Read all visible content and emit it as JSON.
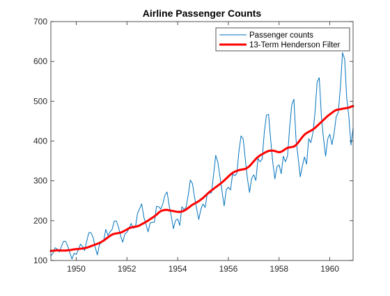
{
  "chart_data": {
    "type": "line",
    "title": "Airline Passenger Counts",
    "xlabel": "",
    "ylabel": "",
    "xlim": [
      1949.0,
      1960.917
    ],
    "ylim": [
      100,
      700
    ],
    "x_start": 1949.0,
    "x_step": 0.08333333,
    "x_ticks": [
      1950,
      1952,
      1954,
      1956,
      1958,
      1960
    ],
    "y_ticks": [
      100,
      200,
      300,
      400,
      500,
      600,
      700
    ],
    "grid": false,
    "legend_position": "top-right",
    "series": [
      {
        "name": "Passenger counts",
        "color": "#0072BD",
        "line_width": 1,
        "values": [
          112,
          118,
          132,
          129,
          121,
          135,
          148,
          148,
          136,
          119,
          104,
          118,
          115,
          126,
          141,
          135,
          125,
          149,
          170,
          170,
          158,
          133,
          114,
          140,
          145,
          150,
          178,
          163,
          172,
          178,
          199,
          199,
          184,
          162,
          146,
          166,
          171,
          180,
          193,
          181,
          183,
          218,
          230,
          242,
          209,
          191,
          172,
          194,
          196,
          196,
          236,
          235,
          229,
          243,
          264,
          272,
          237,
          211,
          180,
          201,
          204,
          188,
          235,
          227,
          234,
          264,
          302,
          293,
          259,
          229,
          203,
          229,
          242,
          233,
          267,
          269,
          270,
          315,
          364,
          347,
          312,
          274,
          237,
          278,
          284,
          277,
          317,
          313,
          318,
          374,
          413,
          405,
          355,
          306,
          271,
          306,
          315,
          301,
          356,
          348,
          355,
          422,
          465,
          467,
          404,
          347,
          305,
          336,
          340,
          318,
          362,
          348,
          363,
          435,
          491,
          505,
          404,
          359,
          310,
          337,
          360,
          342,
          406,
          396,
          420,
          472,
          548,
          559,
          463,
          407,
          362,
          405,
          417,
          391,
          419,
          461,
          472,
          535,
          622,
          606,
          508,
          461,
          390,
          432
        ]
      },
      {
        "name": "13-Term Henderson Filter",
        "color": "#FF0000",
        "line_width": 3,
        "values": [
          124,
          124.5,
          125,
          125.5,
          125.5,
          125,
          125,
          125,
          125.5,
          126,
          127,
          128,
          128.5,
          129,
          129.5,
          130,
          131,
          132,
          134,
          136,
          138,
          140,
          142,
          144,
          147,
          150,
          154,
          158,
          162,
          165,
          167,
          168,
          169,
          170,
          172,
          175,
          178,
          181,
          183,
          184,
          185,
          186,
          188,
          191,
          194,
          197,
          200,
          204,
          207,
          211,
          215,
          220,
          224,
          226,
          227,
          227,
          226,
          225,
          224,
          223,
          222,
          222,
          223,
          225,
          228,
          232,
          236,
          240,
          243,
          246,
          249,
          253,
          257,
          262,
          267,
          272,
          276,
          280,
          284,
          288,
          292,
          296,
          301,
          306,
          311,
          316,
          320,
          323,
          325,
          327,
          328,
          329,
          330,
          333,
          337,
          343,
          349,
          355,
          360,
          364,
          367,
          370,
          373,
          375,
          376,
          376,
          375,
          373,
          372,
          373,
          376,
          380,
          383,
          384,
          385,
          386,
          390,
          396,
          403,
          410,
          416,
          420,
          423,
          426,
          429,
          433,
          438,
          443,
          448,
          453,
          458,
          463,
          467,
          471,
          475,
          478,
          479,
          480,
          481,
          482,
          483,
          484,
          486,
          488
        ]
      }
    ]
  }
}
